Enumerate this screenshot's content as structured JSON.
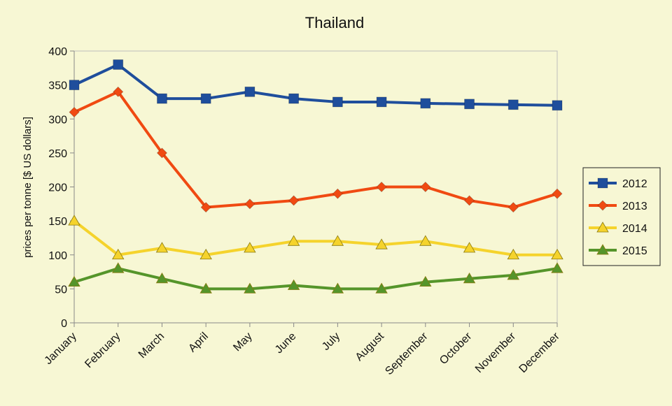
{
  "chart_data": {
    "type": "line",
    "title": "Thailand",
    "xlabel": "",
    "ylabel": "prices per tonne [$ US dollars]",
    "ylim": [
      0,
      400
    ],
    "yticks": [
      0,
      50,
      100,
      150,
      200,
      250,
      300,
      350,
      400
    ],
    "categories": [
      "January",
      "February",
      "March",
      "April",
      "May",
      "June",
      "July",
      "August",
      "September",
      "October",
      "November",
      "December"
    ],
    "grid": false,
    "legend_position": "right",
    "series": [
      {
        "name": "2012",
        "color": "#1f4e9c",
        "marker": "square",
        "values": [
          350,
          380,
          330,
          330,
          340,
          330,
          325,
          325,
          323,
          322,
          321,
          320
        ]
      },
      {
        "name": "2013",
        "color": "#f04a12",
        "marker": "diamond",
        "values": [
          310,
          340,
          250,
          170,
          175,
          180,
          190,
          200,
          200,
          180,
          170,
          190
        ]
      },
      {
        "name": "2014",
        "color": "#f5d32c",
        "marker": "triangle",
        "values": [
          150,
          100,
          110,
          100,
          110,
          120,
          120,
          115,
          120,
          110,
          100,
          100
        ]
      },
      {
        "name": "2015",
        "color": "#55952a",
        "marker": "triangle",
        "values": [
          60,
          80,
          65,
          50,
          50,
          55,
          50,
          50,
          60,
          65,
          70,
          80
        ]
      }
    ]
  }
}
